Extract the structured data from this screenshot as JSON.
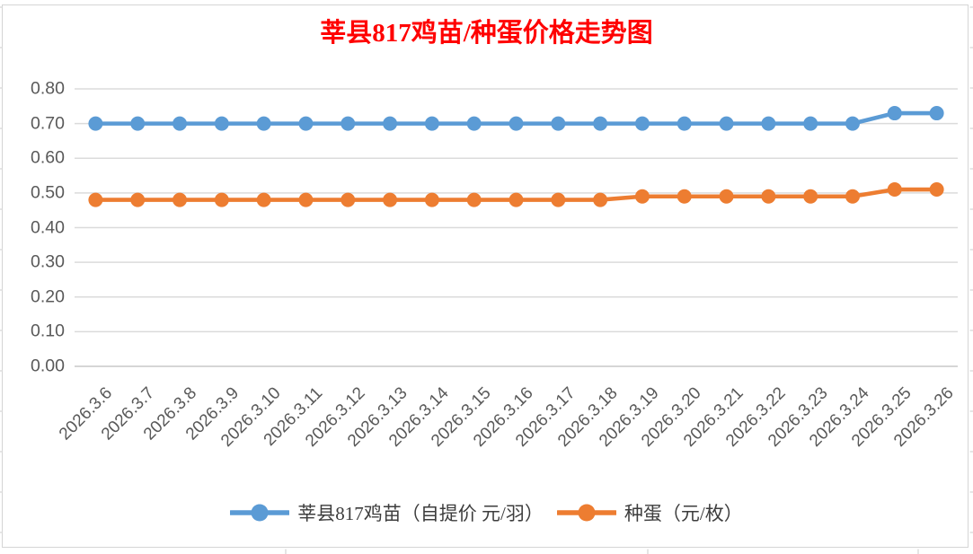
{
  "colors": {
    "title": "#FF0000",
    "axis_label": "#595959",
    "gridline": "#DBDBDB",
    "axis_line": "#C9C9C9",
    "chart_border": "#D5D5D5",
    "worksheet_line": "#DCDCDC"
  },
  "chart_data": {
    "type": "line",
    "title": "莘县817鸡苗/种蛋价格走势图",
    "xlabel": "",
    "ylabel": "",
    "grid": true,
    "legend_position": "bottom",
    "x_tick_rotation": 45,
    "ylim": [
      0.0,
      0.8
    ],
    "yticks": [
      0.0,
      0.1,
      0.2,
      0.3,
      0.4,
      0.5,
      0.6,
      0.7,
      0.8
    ],
    "ytick_labels": [
      "0.00",
      "0.10",
      "0.20",
      "0.30",
      "0.40",
      "0.50",
      "0.60",
      "0.70",
      "0.80"
    ],
    "categories": [
      "2026.3.6",
      "2026.3.7",
      "2026.3.8",
      "2026.3.9",
      "2026.3.10",
      "2026.3.11",
      "2026.3.12",
      "2026.3.13",
      "2026.3.14",
      "2026.3.15",
      "2026.3.16",
      "2026.3.17",
      "2026.3.18",
      "2026.3.19",
      "2026.3.20",
      "2026.3.21",
      "2026.3.22",
      "2026.3.23",
      "2026.3.24",
      "2026.3.25",
      "2026.3.26"
    ],
    "series": [
      {
        "name": "莘县817鸡苗（自提价 元/羽）",
        "color": "#5B9BD5",
        "values": [
          0.7,
          0.7,
          0.7,
          0.7,
          0.7,
          0.7,
          0.7,
          0.7,
          0.7,
          0.7,
          0.7,
          0.7,
          0.7,
          0.7,
          0.7,
          0.7,
          0.7,
          0.7,
          0.7,
          0.73,
          0.73
        ]
      },
      {
        "name": "种蛋（元/枚）",
        "color": "#ED7D31",
        "values": [
          0.48,
          0.48,
          0.48,
          0.48,
          0.48,
          0.48,
          0.48,
          0.48,
          0.48,
          0.48,
          0.48,
          0.48,
          0.48,
          0.49,
          0.49,
          0.49,
          0.49,
          0.49,
          0.49,
          0.51,
          0.51
        ]
      }
    ]
  }
}
